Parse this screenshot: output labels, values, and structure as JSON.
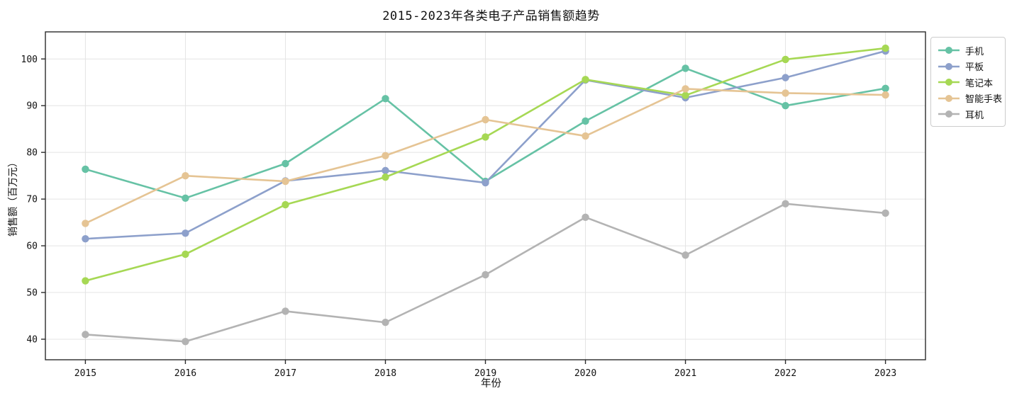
{
  "chart_data": {
    "type": "line",
    "title": "2015-2023年各类电子产品销售额趋势",
    "xlabel": "年份",
    "ylabel": "销售额（百万元）",
    "x": [
      2015,
      2016,
      2017,
      2018,
      2019,
      2020,
      2021,
      2022,
      2023
    ],
    "series": [
      {
        "name": "手机",
        "color": "#66c2a5",
        "values": [
          76.4,
          70.2,
          77.6,
          91.5,
          73.8,
          86.7,
          98.0,
          90.0,
          93.7
        ]
      },
      {
        "name": "平板",
        "color": "#8da0cb",
        "values": [
          61.5,
          62.7,
          73.9,
          76.1,
          73.5,
          95.5,
          91.7,
          96.0,
          101.7
        ]
      },
      {
        "name": "笔记本",
        "color": "#a6d854",
        "values": [
          52.5,
          58.2,
          68.8,
          74.7,
          83.3,
          95.6,
          92.2,
          99.9,
          102.3
        ]
      },
      {
        "name": "智能手表",
        "color": "#e5c494",
        "values": [
          64.8,
          75.0,
          73.8,
          79.3,
          87.0,
          83.5,
          93.6,
          92.7,
          92.3
        ]
      },
      {
        "name": "耳机",
        "color": "#b3b3b3",
        "values": [
          41.0,
          39.5,
          46.0,
          43.6,
          53.8,
          66.1,
          58.0,
          69.0,
          67.0
        ]
      }
    ],
    "y_ticks": [
      40,
      50,
      60,
      70,
      80,
      90,
      100
    ],
    "ylim": [
      35.6,
      105.8
    ],
    "xlim": [
      2014.6,
      2023.4
    ],
    "grid": true,
    "legend_position": "outside upper right",
    "colors": {
      "spine": "#2b2b2b",
      "grid": "#e4e4e4",
      "background": "#ffffff",
      "tick_text": "#111111"
    }
  }
}
